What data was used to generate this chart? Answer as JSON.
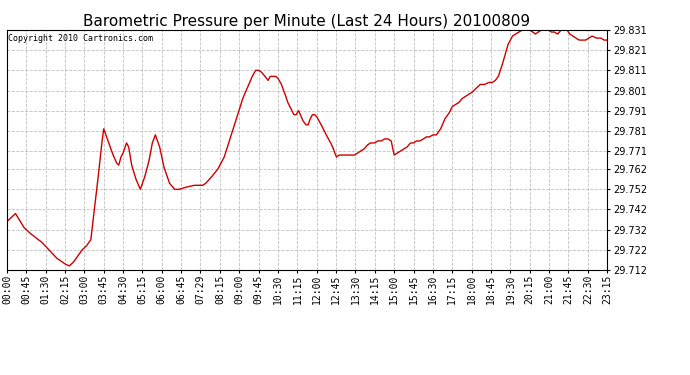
{
  "title": "Barometric Pressure per Minute (Last 24 Hours) 20100809",
  "copyright": "Copyright 2010 Cartronics.com",
  "line_color": "#cc0000",
  "background_color": "#ffffff",
  "grid_color": "#c0c0c0",
  "ylim": [
    29.712,
    29.831
  ],
  "yticks": [
    29.712,
    29.722,
    29.732,
    29.742,
    29.752,
    29.762,
    29.771,
    29.781,
    29.791,
    29.801,
    29.811,
    29.821,
    29.831
  ],
  "xtick_labels": [
    "00:00",
    "00:45",
    "01:30",
    "02:15",
    "03:00",
    "03:45",
    "04:30",
    "05:15",
    "06:00",
    "06:45",
    "07:29",
    "08:15",
    "09:00",
    "09:45",
    "10:30",
    "11:15",
    "12:00",
    "12:45",
    "13:30",
    "14:15",
    "15:00",
    "15:45",
    "16:30",
    "17:15",
    "18:00",
    "18:45",
    "19:30",
    "20:15",
    "21:00",
    "21:45",
    "22:30",
    "23:15"
  ],
  "title_fontsize": 11,
  "copyright_fontsize": 6,
  "tick_fontsize": 7,
  "key_points": [
    [
      0,
      29.736
    ],
    [
      20,
      29.74
    ],
    [
      40,
      29.733
    ],
    [
      55,
      29.73
    ],
    [
      80,
      29.726
    ],
    [
      115,
      29.718
    ],
    [
      135,
      29.715
    ],
    [
      145,
      29.714
    ],
    [
      155,
      29.716
    ],
    [
      165,
      29.719
    ],
    [
      175,
      29.722
    ],
    [
      185,
      29.724
    ],
    [
      195,
      29.727
    ],
    [
      210,
      29.754
    ],
    [
      220,
      29.774
    ],
    [
      225,
      29.782
    ],
    [
      235,
      29.776
    ],
    [
      245,
      29.77
    ],
    [
      255,
      29.765
    ],
    [
      260,
      29.764
    ],
    [
      265,
      29.768
    ],
    [
      270,
      29.77
    ],
    [
      278,
      29.775
    ],
    [
      283,
      29.773
    ],
    [
      290,
      29.764
    ],
    [
      300,
      29.757
    ],
    [
      310,
      29.752
    ],
    [
      320,
      29.758
    ],
    [
      330,
      29.766
    ],
    [
      338,
      29.775
    ],
    [
      345,
      29.779
    ],
    [
      355,
      29.773
    ],
    [
      365,
      29.763
    ],
    [
      378,
      29.755
    ],
    [
      390,
      29.752
    ],
    [
      400,
      29.752
    ],
    [
      415,
      29.753
    ],
    [
      435,
      29.754
    ],
    [
      449,
      29.754
    ],
    [
      455,
      29.754
    ],
    [
      462,
      29.755
    ],
    [
      475,
      29.758
    ],
    [
      490,
      29.762
    ],
    [
      505,
      29.768
    ],
    [
      520,
      29.778
    ],
    [
      535,
      29.788
    ],
    [
      548,
      29.797
    ],
    [
      560,
      29.803
    ],
    [
      570,
      29.808
    ],
    [
      578,
      29.811
    ],
    [
      585,
      29.811
    ],
    [
      592,
      29.81
    ],
    [
      600,
      29.808
    ],
    [
      607,
      29.806
    ],
    [
      612,
      29.808
    ],
    [
      618,
      29.808
    ],
    [
      625,
      29.808
    ],
    [
      630,
      29.807
    ],
    [
      638,
      29.804
    ],
    [
      645,
      29.8
    ],
    [
      653,
      29.795
    ],
    [
      660,
      29.792
    ],
    [
      667,
      29.789
    ],
    [
      672,
      29.789
    ],
    [
      678,
      29.791
    ],
    [
      682,
      29.789
    ],
    [
      688,
      29.786
    ],
    [
      695,
      29.784
    ],
    [
      700,
      29.784
    ],
    [
      705,
      29.787
    ],
    [
      710,
      29.789
    ],
    [
      715,
      29.789
    ],
    [
      720,
      29.788
    ],
    [
      728,
      29.785
    ],
    [
      735,
      29.782
    ],
    [
      742,
      29.779
    ],
    [
      750,
      29.776
    ],
    [
      757,
      29.773
    ],
    [
      762,
      29.77
    ],
    [
      766,
      29.768
    ],
    [
      772,
      29.769
    ],
    [
      778,
      29.769
    ],
    [
      785,
      29.769
    ],
    [
      792,
      29.769
    ],
    [
      800,
      29.769
    ],
    [
      808,
      29.769
    ],
    [
      815,
      29.77
    ],
    [
      822,
      29.771
    ],
    [
      830,
      29.772
    ],
    [
      838,
      29.774
    ],
    [
      845,
      29.775
    ],
    [
      855,
      29.775
    ],
    [
      862,
      29.776
    ],
    [
      870,
      29.776
    ],
    [
      878,
      29.777
    ],
    [
      885,
      29.777
    ],
    [
      893,
      29.776
    ],
    [
      900,
      29.769
    ],
    [
      907,
      29.77
    ],
    [
      915,
      29.771
    ],
    [
      922,
      29.772
    ],
    [
      930,
      29.773
    ],
    [
      938,
      29.775
    ],
    [
      945,
      29.775
    ],
    [
      952,
      29.776
    ],
    [
      960,
      29.776
    ],
    [
      968,
      29.777
    ],
    [
      975,
      29.778
    ],
    [
      982,
      29.778
    ],
    [
      990,
      29.779
    ],
    [
      998,
      29.779
    ],
    [
      1008,
      29.782
    ],
    [
      1018,
      29.787
    ],
    [
      1028,
      29.79
    ],
    [
      1035,
      29.793
    ],
    [
      1042,
      29.794
    ],
    [
      1050,
      29.795
    ],
    [
      1058,
      29.797
    ],
    [
      1065,
      29.798
    ],
    [
      1072,
      29.799
    ],
    [
      1080,
      29.8
    ],
    [
      1090,
      29.802
    ],
    [
      1100,
      29.804
    ],
    [
      1110,
      29.804
    ],
    [
      1120,
      29.805
    ],
    [
      1128,
      29.805
    ],
    [
      1135,
      29.806
    ],
    [
      1142,
      29.808
    ],
    [
      1150,
      29.813
    ],
    [
      1158,
      29.819
    ],
    [
      1165,
      29.824
    ],
    [
      1170,
      29.826
    ],
    [
      1175,
      29.828
    ],
    [
      1182,
      29.829
    ],
    [
      1190,
      29.83
    ],
    [
      1198,
      29.831
    ],
    [
      1208,
      29.831
    ],
    [
      1215,
      29.831
    ],
    [
      1222,
      29.83
    ],
    [
      1228,
      29.829
    ],
    [
      1235,
      29.83
    ],
    [
      1242,
      29.831
    ],
    [
      1250,
      29.831
    ],
    [
      1258,
      29.831
    ],
    [
      1265,
      29.83
    ],
    [
      1272,
      29.83
    ],
    [
      1280,
      29.829
    ],
    [
      1288,
      29.831
    ],
    [
      1295,
      29.831
    ],
    [
      1302,
      29.831
    ],
    [
      1308,
      29.829
    ],
    [
      1315,
      29.828
    ],
    [
      1322,
      29.827
    ],
    [
      1330,
      29.826
    ],
    [
      1338,
      29.826
    ],
    [
      1345,
      29.826
    ],
    [
      1352,
      29.827
    ],
    [
      1360,
      29.828
    ],
    [
      1370,
      29.827
    ],
    [
      1380,
      29.827
    ],
    [
      1388,
      29.826
    ],
    [
      1395,
      29.826
    ]
  ]
}
